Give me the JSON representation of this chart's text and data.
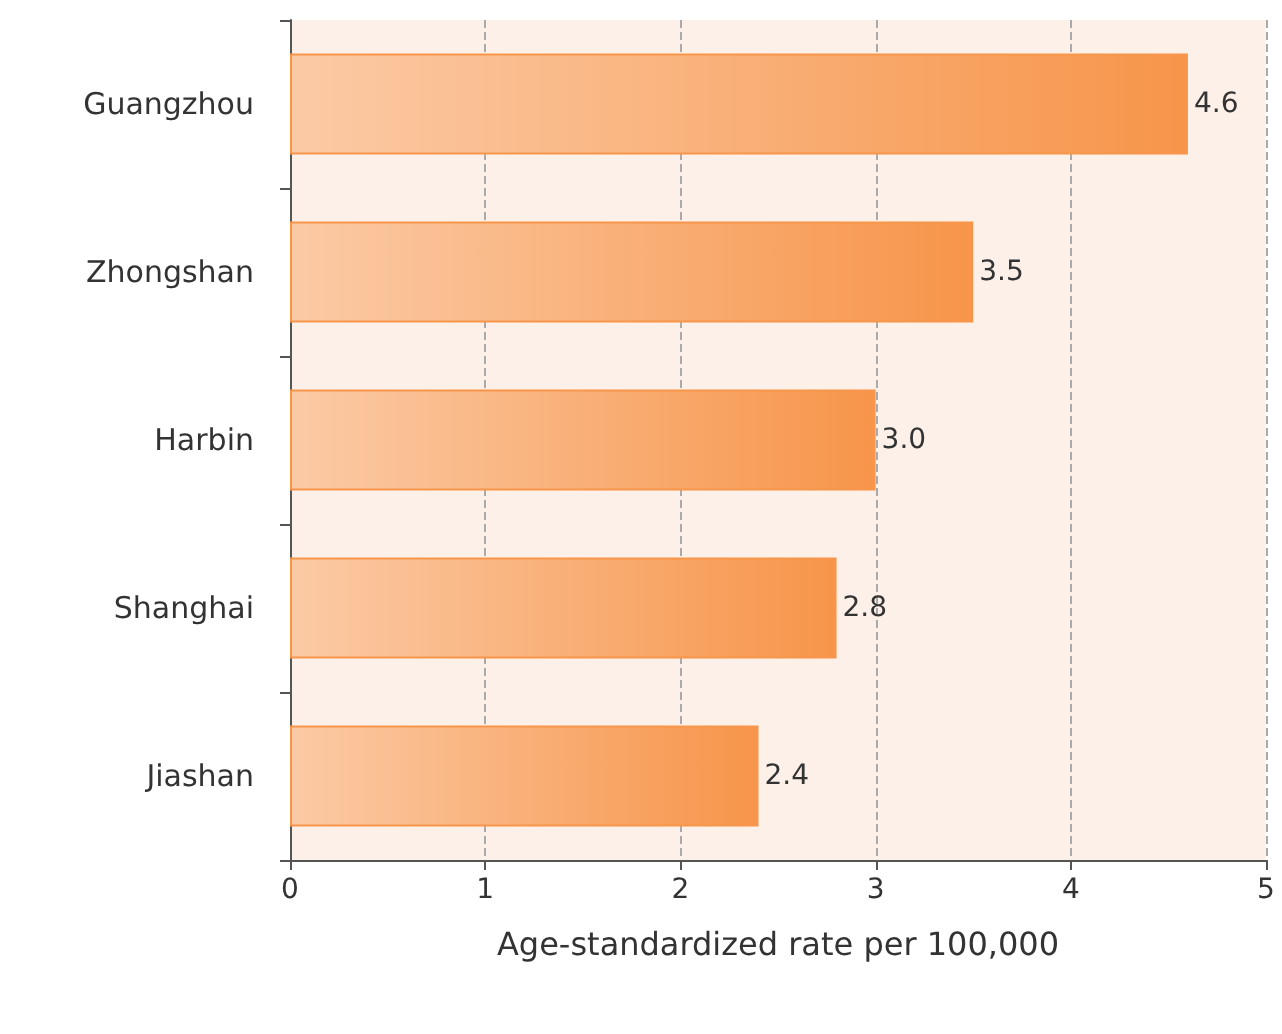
{
  "chart_data": {
    "type": "bar",
    "orientation": "horizontal",
    "categories": [
      "Guangzhou",
      "Zhongshan",
      "Harbin",
      "Shanghai",
      "Jiashan"
    ],
    "series": [
      {
        "color": "#f7954a",
        "values": [
          4.6,
          3.5,
          3.0,
          2.8,
          2.4
        ],
        "value_labels": [
          "4.6",
          "3.5",
          "3.0",
          "2.8",
          "2.4"
        ]
      }
    ],
    "xlim": [
      0,
      5
    ],
    "xticks": [
      0,
      1,
      2,
      3,
      4,
      5
    ],
    "xlabel": "Age-standardized rate per 100,000",
    "grid": "x"
  }
}
